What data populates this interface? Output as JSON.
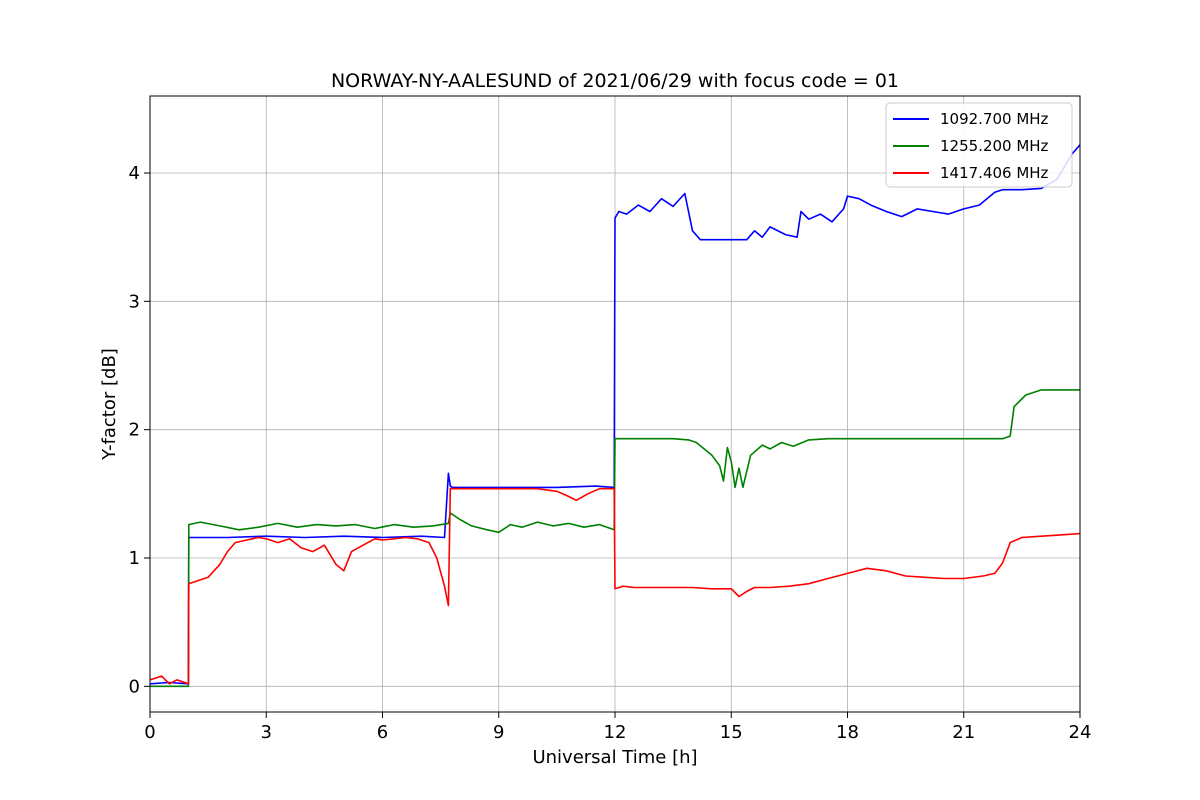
{
  "chart_data": {
    "type": "line",
    "title": "NORWAY-NY-AALESUND of 2021/06/29 with focus code = 01",
    "xlabel": "Universal Time [h]",
    "ylabel": "Y-factor [dB]",
    "xlim": [
      0,
      24
    ],
    "ylim": [
      -0.2,
      4.6
    ],
    "xticks": [
      0,
      3,
      6,
      9,
      12,
      15,
      18,
      21,
      24
    ],
    "xtick_labels": [
      "0",
      "3",
      "6",
      "9",
      "12",
      "15",
      "18",
      "21",
      "24"
    ],
    "yticks": [
      0,
      1,
      2,
      3,
      4
    ],
    "ytick_labels": [
      "0",
      "1",
      "2",
      "3",
      "4"
    ],
    "grid": true,
    "legend_position": "top-right",
    "series": [
      {
        "name": "1092.700 MHz",
        "color": "#0000ff",
        "x": [
          0,
          0.5,
          0.99,
          1.0,
          1.2,
          2.0,
          3.0,
          4.0,
          5.0,
          6.0,
          7.0,
          7.6,
          7.7,
          7.75,
          7.8,
          8.5,
          9.5,
          10.5,
          11.5,
          11.98,
          12.0,
          12.1,
          12.3,
          12.6,
          12.9,
          13.2,
          13.5,
          13.8,
          14.0,
          14.2,
          14.6,
          15.0,
          15.4,
          15.6,
          15.8,
          16.0,
          16.4,
          16.7,
          16.8,
          17.0,
          17.3,
          17.6,
          17.9,
          18.0,
          18.3,
          18.6,
          19.0,
          19.4,
          19.8,
          20.2,
          20.6,
          21.0,
          21.4,
          21.8,
          22.0,
          22.5,
          23.0,
          23.4,
          23.8,
          24.0
        ],
        "y": [
          0.02,
          0.03,
          0.02,
          1.16,
          1.16,
          1.16,
          1.17,
          1.16,
          1.17,
          1.16,
          1.17,
          1.16,
          1.66,
          1.56,
          1.55,
          1.55,
          1.55,
          1.55,
          1.56,
          1.55,
          3.65,
          3.7,
          3.68,
          3.75,
          3.7,
          3.8,
          3.74,
          3.84,
          3.55,
          3.48,
          3.48,
          3.48,
          3.48,
          3.55,
          3.5,
          3.58,
          3.52,
          3.5,
          3.7,
          3.64,
          3.68,
          3.62,
          3.72,
          3.82,
          3.8,
          3.75,
          3.7,
          3.66,
          3.72,
          3.7,
          3.68,
          3.72,
          3.75,
          3.85,
          3.87,
          3.87,
          3.88,
          3.95,
          4.15,
          4.22
        ]
      },
      {
        "name": "1255.200 MHz",
        "color": "#008000",
        "x": [
          0,
          0.5,
          0.99,
          1.0,
          1.3,
          1.8,
          2.3,
          2.8,
          3.3,
          3.8,
          4.3,
          4.8,
          5.3,
          5.8,
          6.3,
          6.8,
          7.3,
          7.7,
          7.75,
          8.0,
          8.3,
          8.7,
          9.0,
          9.3,
          9.6,
          10.0,
          10.4,
          10.8,
          11.2,
          11.6,
          11.98,
          12.0,
          12.5,
          13.0,
          13.5,
          13.9,
          14.1,
          14.3,
          14.5,
          14.7,
          14.8,
          14.9,
          15.0,
          15.1,
          15.2,
          15.3,
          15.5,
          15.8,
          16.0,
          16.3,
          16.6,
          17.0,
          17.5,
          18.0,
          19.0,
          20.0,
          21.0,
          22.0,
          22.2,
          22.3,
          22.6,
          23.0,
          24.0
        ],
        "y": [
          0.0,
          0.0,
          0.0,
          1.26,
          1.28,
          1.25,
          1.22,
          1.24,
          1.27,
          1.24,
          1.26,
          1.25,
          1.26,
          1.23,
          1.26,
          1.24,
          1.25,
          1.27,
          1.35,
          1.3,
          1.25,
          1.22,
          1.2,
          1.26,
          1.24,
          1.28,
          1.25,
          1.27,
          1.24,
          1.26,
          1.22,
          1.93,
          1.93,
          1.93,
          1.93,
          1.92,
          1.9,
          1.85,
          1.8,
          1.72,
          1.6,
          1.86,
          1.75,
          1.55,
          1.7,
          1.55,
          1.8,
          1.88,
          1.85,
          1.9,
          1.87,
          1.92,
          1.93,
          1.93,
          1.93,
          1.93,
          1.93,
          1.93,
          1.95,
          2.18,
          2.27,
          2.31,
          2.31
        ]
      },
      {
        "name": "1417.406 MHz",
        "color": "#ff0000",
        "x": [
          0,
          0.3,
          0.5,
          0.7,
          0.99,
          1.0,
          1.2,
          1.5,
          1.8,
          2.0,
          2.2,
          2.5,
          2.8,
          3.0,
          3.3,
          3.6,
          3.9,
          4.2,
          4.5,
          4.8,
          5.0,
          5.2,
          5.5,
          5.8,
          6.0,
          6.3,
          6.6,
          6.9,
          7.2,
          7.4,
          7.6,
          7.7,
          7.75,
          8.0,
          9.0,
          10.0,
          10.5,
          10.8,
          11.0,
          11.3,
          11.6,
          11.98,
          12.0,
          12.2,
          12.5,
          13.0,
          13.5,
          14.0,
          14.5,
          15.0,
          15.2,
          15.4,
          15.6,
          16.0,
          16.5,
          17.0,
          17.5,
          18.0,
          18.5,
          19.0,
          19.5,
          20.0,
          20.5,
          21.0,
          21.5,
          21.8,
          22.0,
          22.2,
          22.5,
          23.0,
          23.5,
          24.0
        ],
        "y": [
          0.05,
          0.08,
          0.02,
          0.05,
          0.02,
          0.8,
          0.82,
          0.85,
          0.95,
          1.05,
          1.12,
          1.14,
          1.16,
          1.15,
          1.12,
          1.15,
          1.08,
          1.05,
          1.1,
          0.95,
          0.9,
          1.05,
          1.1,
          1.15,
          1.14,
          1.15,
          1.16,
          1.15,
          1.12,
          1.0,
          0.78,
          0.63,
          1.54,
          1.54,
          1.54,
          1.54,
          1.52,
          1.48,
          1.45,
          1.5,
          1.54,
          1.54,
          0.76,
          0.78,
          0.77,
          0.77,
          0.77,
          0.77,
          0.76,
          0.76,
          0.7,
          0.74,
          0.77,
          0.77,
          0.78,
          0.8,
          0.84,
          0.88,
          0.92,
          0.9,
          0.86,
          0.85,
          0.84,
          0.84,
          0.86,
          0.88,
          0.96,
          1.12,
          1.16,
          1.17,
          1.18,
          1.19
        ]
      }
    ]
  }
}
